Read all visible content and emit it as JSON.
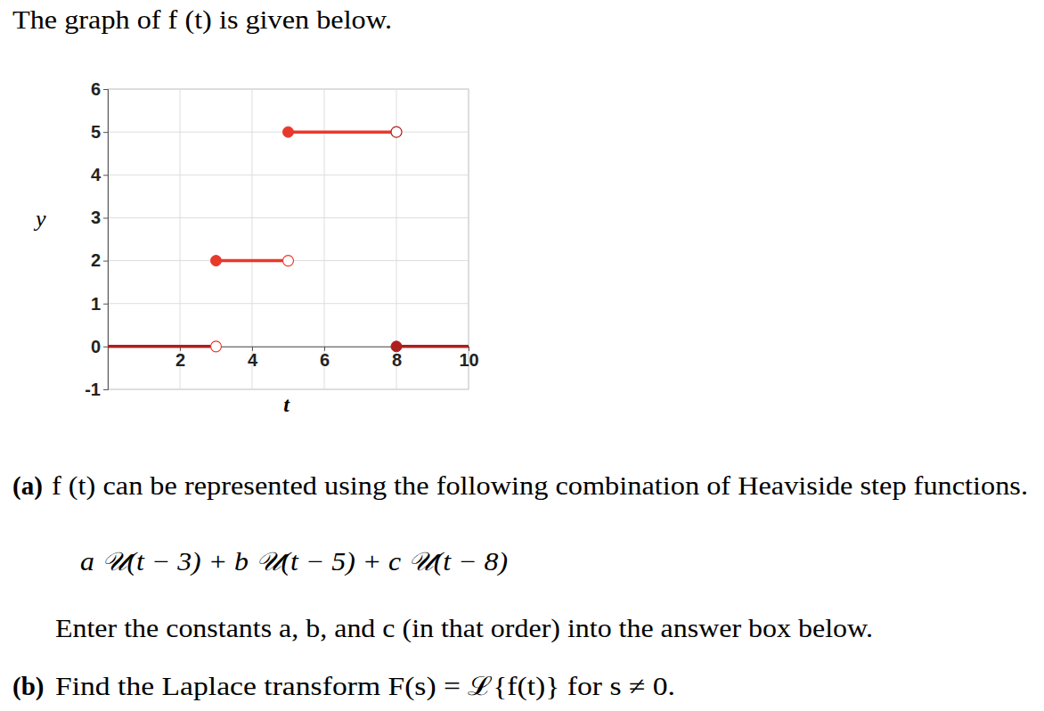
{
  "document": {
    "intro": "The graph of f (t) is given below.",
    "part_a": {
      "label": "(a)",
      "text": "f (t) can be represented using the following combination of Heaviside step functions.",
      "formula": "a 𝒰(t − 3) + b 𝒰(t − 5) + c 𝒰(t − 8)",
      "instruction": "Enter the constants a, b, and c (in that order) into the answer box below."
    },
    "part_b": {
      "label": "(b)",
      "text": "Find the Laplace transform F(s) = ℒ{f(t)} for s ≠ 0."
    }
  },
  "chart_data": {
    "type": "step",
    "x_label": "t",
    "y_label": "y",
    "x": [
      0,
      3,
      5,
      8
    ],
    "values": [
      0,
      2,
      5,
      0
    ],
    "colors": [
      "#b01e1e",
      "#e8392c",
      "#e8392c",
      "#b01e1e"
    ],
    "xlim": [
      0,
      10
    ],
    "ylim": [
      -1,
      6
    ],
    "xticks": [
      2,
      4,
      6,
      8,
      10
    ],
    "yticks": [
      -1,
      0,
      1,
      2,
      3,
      4,
      5,
      6
    ],
    "grid": true,
    "marker": "circle"
  }
}
